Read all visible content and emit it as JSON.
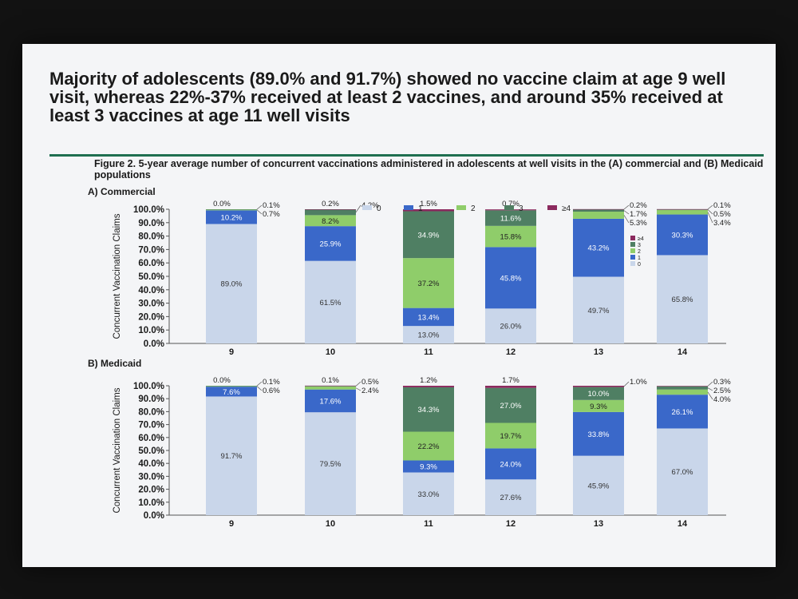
{
  "slide": {
    "title": "Majority of adolescents (89.0% and 91.7%) showed no vaccine claim at age 9 well visit, whereas 22%-37% received at least 2 vaccines, and around 35% received at least 3 vaccines at age 11 well visits",
    "figure_title": "Figure 2. 5-year average number of concurrent vaccinations administered in adolescents at well visits in the (A) commercial and (B) Medicaid populations"
  },
  "colors": {
    "0": "#c9d6ea",
    "1": "#3a68c9",
    "2": "#8fcd6a",
    "3": "#4f7f63",
    "4": "#8b2a5e"
  },
  "chart_data": [
    {
      "type": "bar",
      "stacked": true,
      "title": "A) Commercial",
      "ylabel": "Concurrent Vaccination Claims",
      "ylim": [
        0,
        100
      ],
      "yticks": [
        "0.0%",
        "10.0%",
        "20.0%",
        "30.0%",
        "40.0%",
        "50.0%",
        "60.0%",
        "70.0%",
        "80.0%",
        "90.0%",
        "100.0%"
      ],
      "legend": [
        "0",
        "1",
        "2",
        "3",
        "≥4"
      ],
      "legend_placement": "top",
      "categories": [
        "9",
        "10",
        "11",
        "12",
        "13",
        "14"
      ],
      "series": [
        {
          "name": "0",
          "values": [
            89.0,
            61.5,
            13.0,
            26.0,
            49.7,
            65.8
          ]
        },
        {
          "name": "1",
          "values": [
            10.2,
            25.9,
            13.4,
            45.8,
            43.2,
            30.3
          ]
        },
        {
          "name": "2",
          "values": [
            0.7,
            8.2,
            37.2,
            15.8,
            5.3,
            3.4
          ]
        },
        {
          "name": "3",
          "values": [
            0.1,
            4.2,
            34.9,
            11.6,
            1.7,
            0.5
          ]
        },
        {
          "name": "≥4",
          "values": [
            0.0,
            0.2,
            1.5,
            0.7,
            0.2,
            0.1
          ]
        }
      ],
      "labels": [
        [
          "89.0%",
          "10.2%",
          "0.7%",
          "0.1%",
          "0.0%"
        ],
        [
          "61.5%",
          "25.9%",
          "8.2%",
          "4.2%",
          "0.2%"
        ],
        [
          "13.0%",
          "13.4%",
          "37.2%",
          "34.9%",
          "1.5%"
        ],
        [
          "26.0%",
          "45.8%",
          "15.8%",
          "11.6%",
          "0.7%"
        ],
        [
          "49.7%",
          "43.2%",
          "5.3%",
          "1.7%",
          "0.2%"
        ],
        [
          "65.8%",
          "30.3%",
          "3.4%",
          "0.5%",
          "0.1%"
        ]
      ],
      "inline_legend": [
        "≥4",
        "3",
        "2",
        "1",
        "0"
      ]
    },
    {
      "type": "bar",
      "stacked": true,
      "title": "B) Medicaid",
      "ylabel": "Concurrent Vaccination Claims",
      "ylim": [
        0,
        100
      ],
      "yticks": [
        "0.0%",
        "10.0%",
        "20.0%",
        "30.0%",
        "40.0%",
        "50.0%",
        "60.0%",
        "70.0%",
        "80.0%",
        "90.0%",
        "100.0%"
      ],
      "categories": [
        "9",
        "10",
        "11",
        "12",
        "13",
        "14"
      ],
      "series": [
        {
          "name": "0",
          "values": [
            91.7,
            79.5,
            33.0,
            27.6,
            45.9,
            67.0
          ]
        },
        {
          "name": "1",
          "values": [
            7.6,
            17.6,
            9.3,
            24.0,
            33.8,
            26.1
          ]
        },
        {
          "name": "2",
          "values": [
            0.6,
            2.4,
            22.2,
            19.7,
            9.3,
            4.0
          ]
        },
        {
          "name": "3",
          "values": [
            0.1,
            0.5,
            34.3,
            27.0,
            10.0,
            2.5
          ]
        },
        {
          "name": "≥4",
          "values": [
            0.0,
            0.1,
            1.2,
            1.7,
            1.0,
            0.3
          ]
        }
      ],
      "labels": [
        [
          "91.7%",
          "7.6%",
          "0.6%",
          "0.1%",
          "0.0%"
        ],
        [
          "79.5%",
          "17.6%",
          "2.4%",
          "0.5%",
          "0.1%"
        ],
        [
          "33.0%",
          "9.3%",
          "22.2%",
          "34.3%",
          "1.2%"
        ],
        [
          "27.6%",
          "24.0%",
          "19.7%",
          "27.0%",
          "1.7%"
        ],
        [
          "45.9%",
          "33.8%",
          "9.3%",
          "10.0%",
          "1.0%"
        ],
        [
          "67.0%",
          "26.1%",
          "4.0%",
          "2.5%",
          "0.3%"
        ]
      ]
    }
  ]
}
